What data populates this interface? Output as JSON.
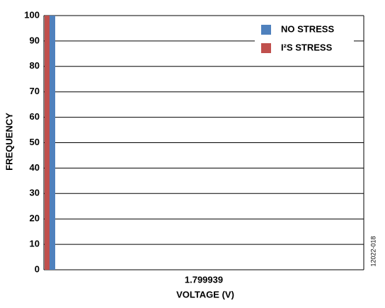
{
  "chart_data": {
    "type": "bar",
    "x_label": "VOLTAGE (V)",
    "y_label": "FREQUENCY",
    "categories": [
      "1.799939"
    ],
    "series": [
      {
        "name": "NO STRESS",
        "color": "#4f81bd",
        "values": [
          100
        ]
      },
      {
        "name": "I²S STRESS",
        "color": "#c0504d",
        "values": [
          100
        ]
      }
    ],
    "ylim": [
      0,
      100
    ],
    "yticks": [
      0,
      10,
      20,
      30,
      40,
      50,
      60,
      70,
      80,
      90,
      100
    ],
    "grid": true,
    "legend": "upper right",
    "annotation": "12022-018"
  }
}
